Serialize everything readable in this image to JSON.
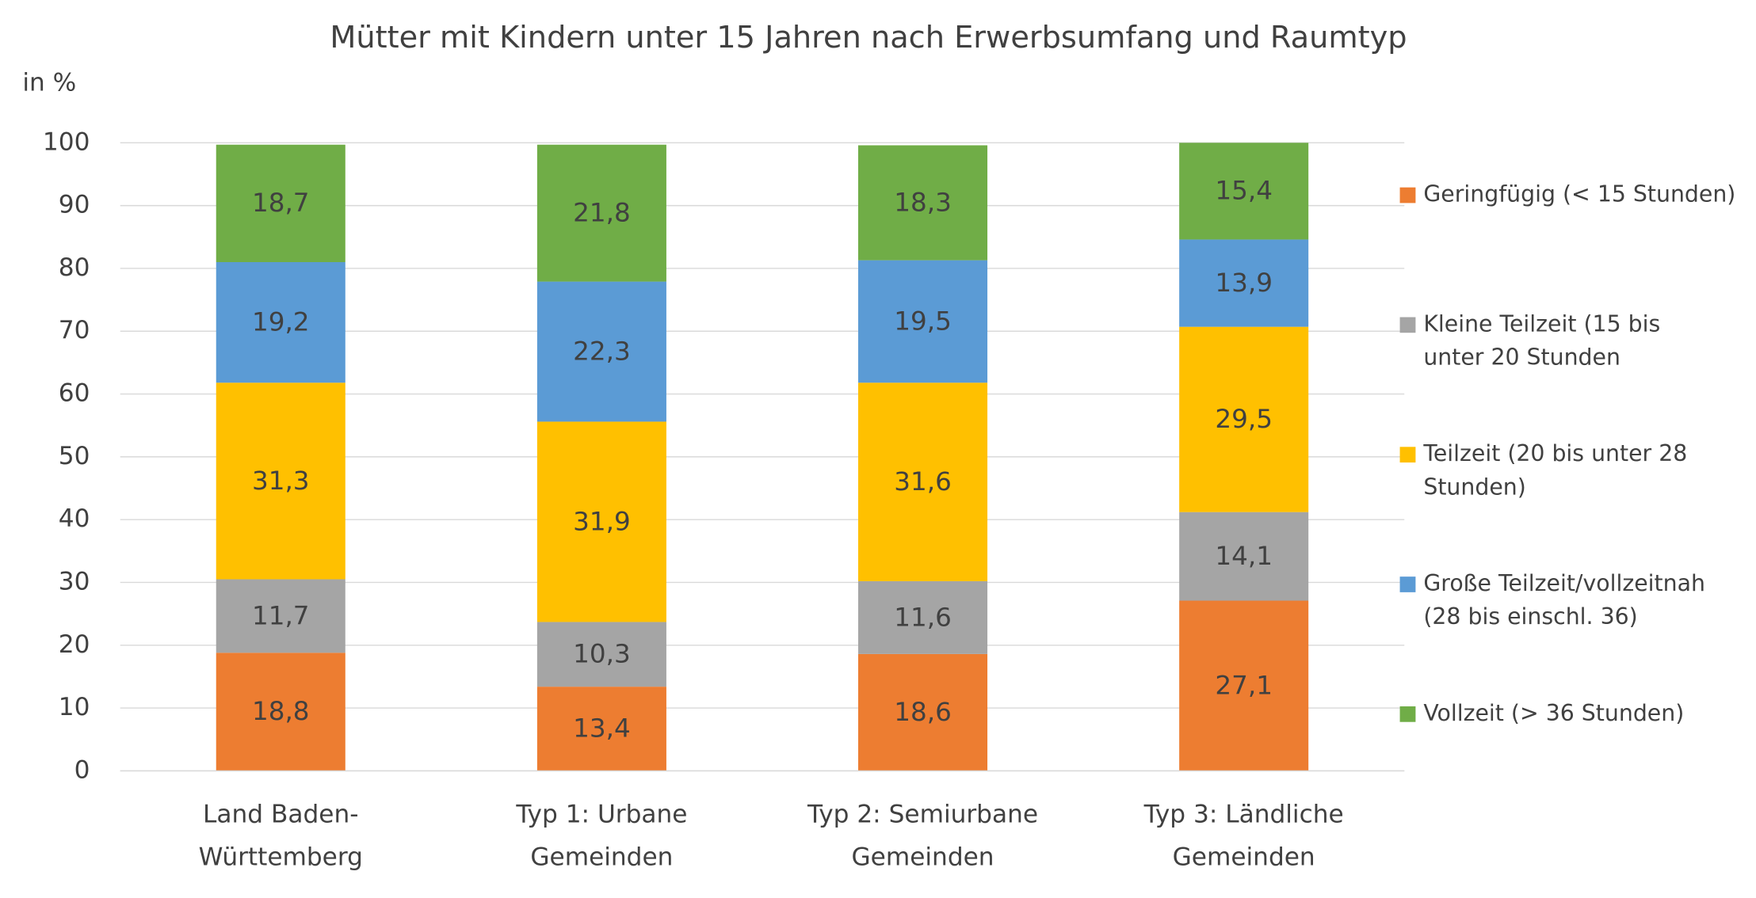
{
  "chart_data": {
    "type": "bar",
    "stacked": true,
    "title": "Mütter mit Kindern unter 15 Jahren nach Erwerbsumfang und Raumtyp",
    "y_label": "in %",
    "categories": [
      "Land Baden-Württemberg",
      "Typ 1: Urbane Gemeinden",
      "Typ 2: Semiurbane Gemeinden",
      "Typ 3: Ländliche Gemeinden"
    ],
    "series": [
      {
        "name": "Geringfügig (< 15 Stunden)",
        "color": "#ED7D31",
        "values": [
          18.8,
          13.4,
          18.6,
          27.1
        ],
        "value_labels": [
          "18,8",
          "13,4",
          "18,6",
          "27,1"
        ]
      },
      {
        "name": "Kleine Teilzeit (15 bis unter 20 Stunden",
        "color": "#A5A5A5",
        "values": [
          11.7,
          10.3,
          11.6,
          14.1
        ],
        "value_labels": [
          "11,7",
          "10,3",
          "11,6",
          "14,1"
        ]
      },
      {
        "name": "Teilzeit (20 bis unter 28 Stunden)",
        "color": "#FFC000",
        "values": [
          31.3,
          31.9,
          31.6,
          29.5
        ],
        "value_labels": [
          "31,3",
          "31,9",
          "31,6",
          "29,5"
        ]
      },
      {
        "name": "Große Teilzeit/vollzeitnah (28 bis einschl. 36)",
        "color": "#5B9BD5",
        "values": [
          19.2,
          22.3,
          19.5,
          13.9
        ],
        "value_labels": [
          "19,2",
          "22,3",
          "19,5",
          "13,9"
        ]
      },
      {
        "name": "Vollzeit (> 36 Stunden)",
        "color": "#70AD47",
        "values": [
          18.7,
          21.8,
          18.3,
          15.4
        ],
        "value_labels": [
          "18,7",
          "21,8",
          "18,3",
          "15,4"
        ]
      }
    ],
    "ylim": [
      0,
      100
    ],
    "yticks": [
      0,
      10,
      20,
      30,
      40,
      50,
      60,
      70,
      80,
      90,
      100
    ],
    "grid": true,
    "legend": "right"
  }
}
